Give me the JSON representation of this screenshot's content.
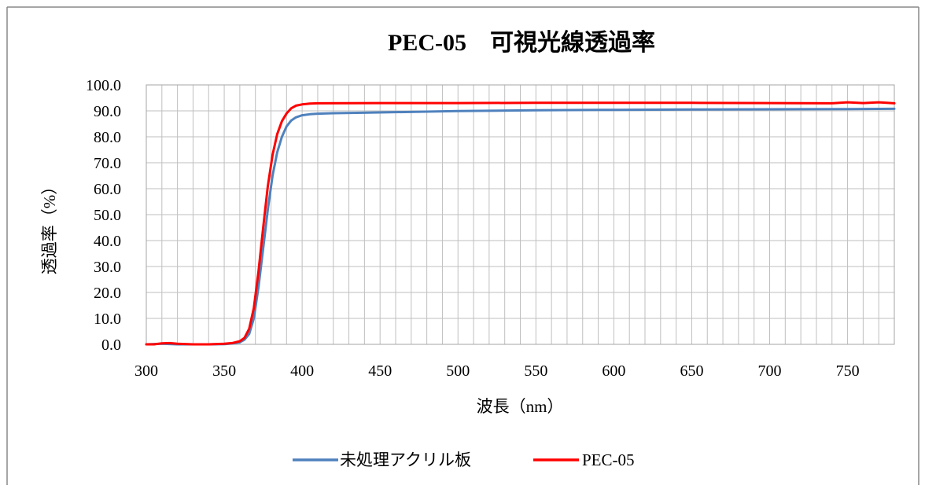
{
  "chart_data": {
    "type": "line",
    "title": "PEC-05　可視光線透過率",
    "xlabel": "波長（nm）",
    "ylabel": "透過率（%）",
    "xlim": [
      300,
      780
    ],
    "ylim": [
      0,
      100
    ],
    "x_ticks": [
      "300",
      "350",
      "400",
      "450",
      "500",
      "550",
      "600",
      "650",
      "700",
      "750"
    ],
    "y_ticks": [
      "0.0",
      "10.0",
      "20.0",
      "30.0",
      "40.0",
      "50.0",
      "60.0",
      "70.0",
      "80.0",
      "90.0",
      "100.0"
    ],
    "grid": true,
    "legend_position": "bottom",
    "series": [
      {
        "name": "未処理アクリル板",
        "color": "#4f81bd",
        "x": [
          300,
          310,
          320,
          330,
          340,
          350,
          355,
          360,
          363,
          366,
          369,
          372,
          375,
          378,
          381,
          384,
          387,
          390,
          393,
          396,
          400,
          405,
          410,
          420,
          450,
          500,
          550,
          600,
          650,
          700,
          750,
          780
        ],
        "y": [
          0.0,
          0.2,
          0.0,
          0.0,
          0.0,
          0.1,
          0.3,
          0.8,
          1.8,
          4.0,
          10.0,
          22.0,
          37.0,
          52.0,
          65.0,
          74.0,
          80.0,
          84.0,
          86.3,
          87.5,
          88.3,
          88.7,
          88.9,
          89.1,
          89.4,
          89.9,
          90.2,
          90.4,
          90.5,
          90.6,
          90.7,
          90.8
        ]
      },
      {
        "name": "PEC-05",
        "color": "#ff0000",
        "x": [
          300,
          305,
          310,
          315,
          320,
          330,
          340,
          350,
          355,
          360,
          363,
          366,
          369,
          372,
          375,
          378,
          381,
          384,
          387,
          390,
          393,
          396,
          400,
          405,
          410,
          450,
          500,
          550,
          600,
          650,
          700,
          740,
          750,
          760,
          770,
          780
        ],
        "y": [
          0.0,
          0.0,
          0.4,
          0.5,
          0.2,
          0.0,
          0.0,
          0.2,
          0.5,
          1.2,
          2.5,
          6.0,
          14.0,
          28.0,
          45.0,
          61.0,
          73.0,
          81.0,
          86.0,
          89.0,
          91.0,
          92.0,
          92.5,
          92.8,
          92.9,
          93.0,
          93.0,
          93.1,
          93.1,
          93.1,
          93.0,
          92.9,
          93.3,
          93.0,
          93.3,
          92.9
        ]
      }
    ]
  }
}
